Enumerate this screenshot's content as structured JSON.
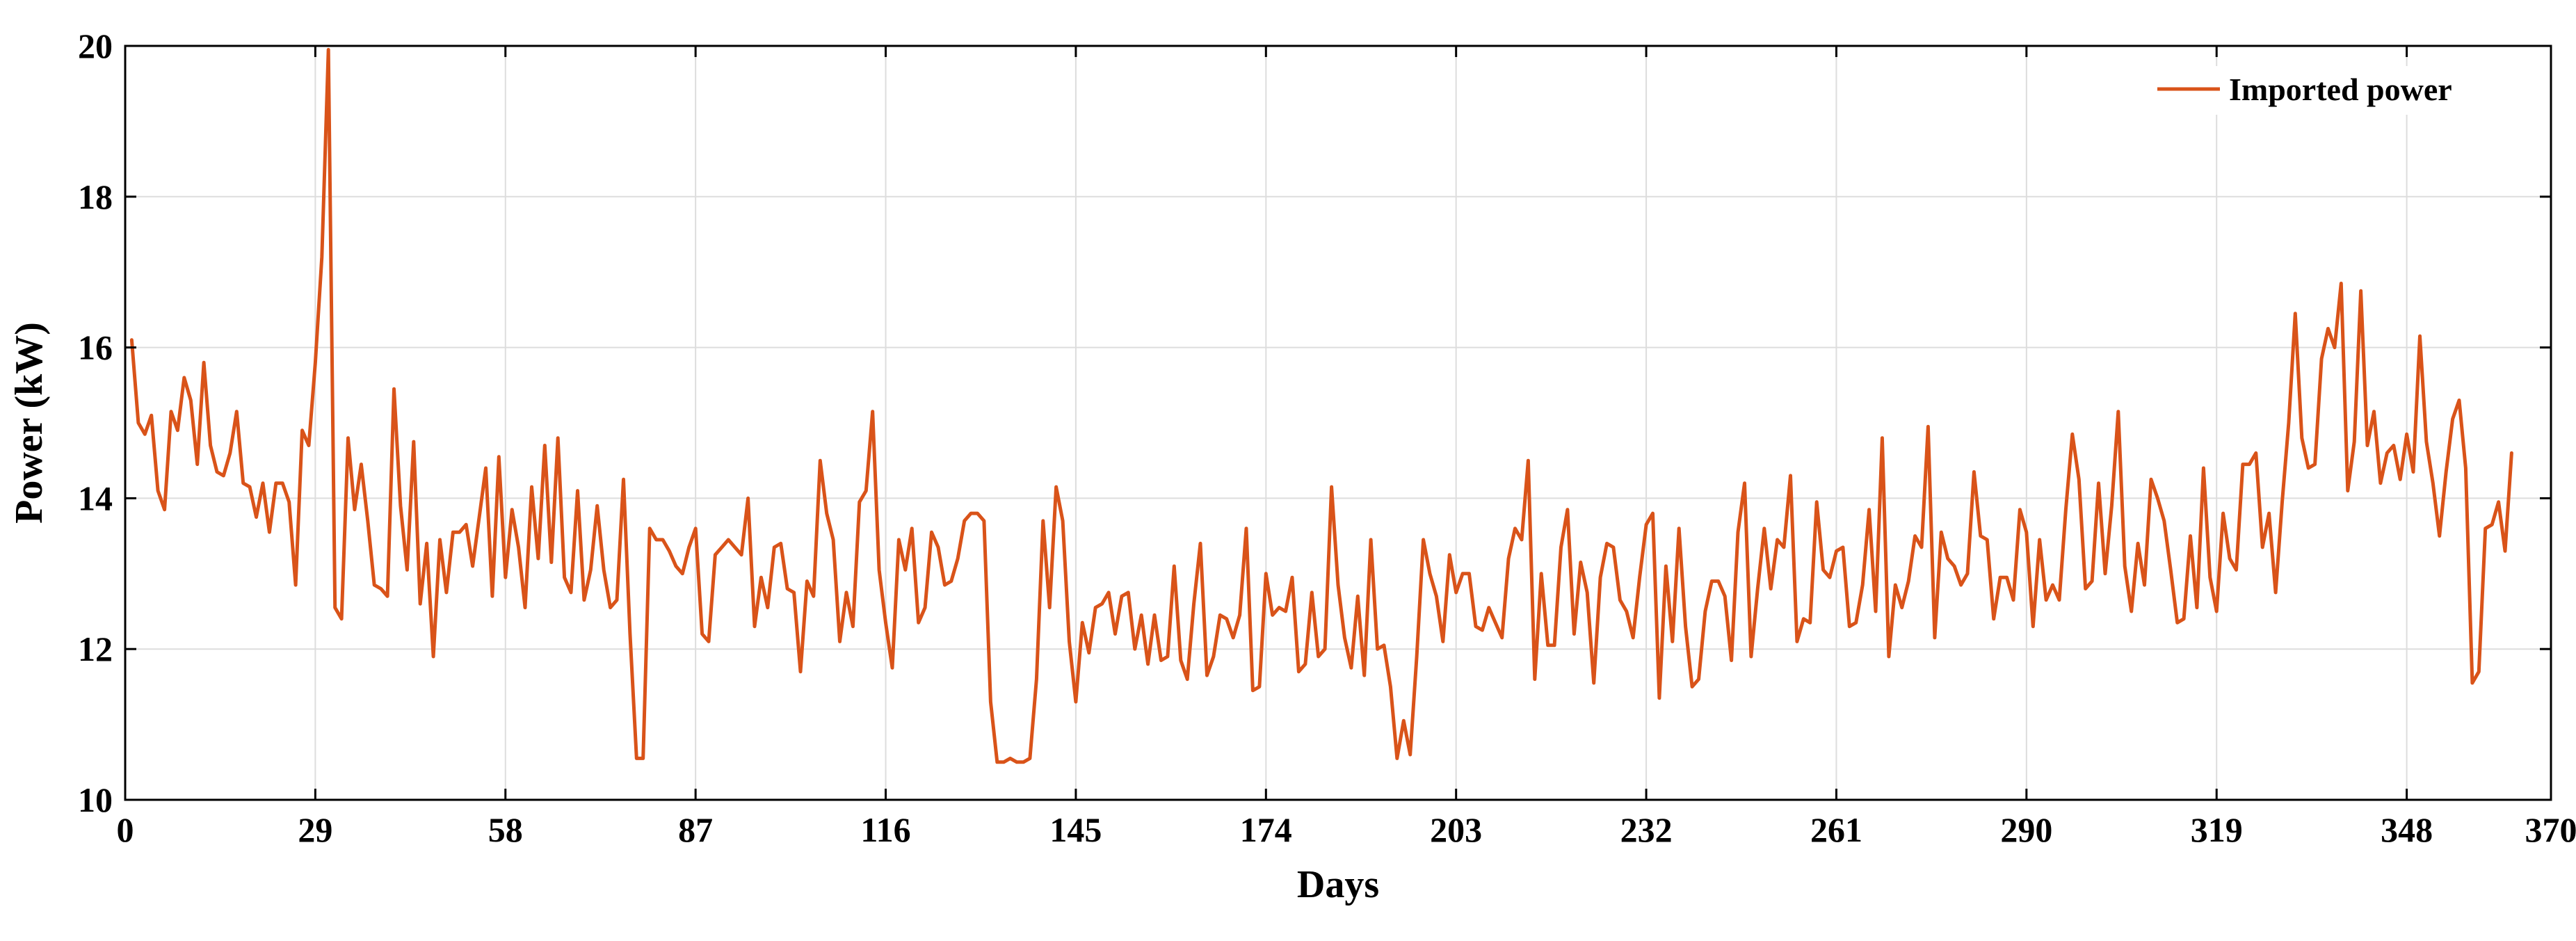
{
  "chart_data": {
    "type": "line",
    "xlabel": "Days",
    "ylabel": "Power (kW)",
    "xlim": [
      0,
      370
    ],
    "ylim": [
      10,
      20
    ],
    "xticks": [
      0,
      29,
      58,
      87,
      116,
      145,
      174,
      203,
      232,
      261,
      290,
      319,
      348,
      370
    ],
    "yticks": [
      10,
      12,
      14,
      16,
      18,
      20
    ],
    "grid": true,
    "legend_position": "top-right",
    "colors": {
      "series": "#D95319",
      "axis": "#000000",
      "grid": "#DDDDDD"
    },
    "series": [
      {
        "name": "Imported power",
        "values": [
          16.1,
          15.0,
          14.85,
          15.1,
          14.1,
          13.85,
          15.15,
          14.9,
          15.6,
          15.3,
          14.45,
          15.8,
          14.7,
          14.35,
          14.3,
          14.6,
          15.15,
          14.2,
          14.15,
          13.75,
          14.2,
          13.55,
          14.2,
          14.2,
          13.95,
          12.85,
          14.9,
          14.7,
          15.8,
          17.2,
          19.95,
          12.55,
          12.4,
          14.8,
          13.85,
          14.45,
          13.7,
          12.85,
          12.8,
          12.7,
          15.45,
          13.9,
          13.05,
          14.75,
          12.6,
          13.4,
          11.9,
          13.45,
          12.75,
          13.55,
          13.55,
          13.65,
          13.1,
          13.75,
          14.4,
          12.7,
          14.55,
          12.95,
          13.85,
          13.35,
          12.55,
          14.15,
          13.2,
          14.7,
          13.15,
          14.8,
          12.95,
          12.75,
          14.1,
          12.65,
          13.05,
          13.9,
          13.05,
          12.55,
          12.65,
          14.25,
          12.2,
          10.55,
          10.55,
          13.6,
          13.45,
          13.45,
          13.3,
          13.1,
          13.0,
          13.35,
          13.6,
          12.2,
          12.1,
          13.25,
          13.35,
          13.45,
          13.35,
          13.25,
          14.0,
          12.3,
          12.95,
          12.55,
          13.35,
          13.4,
          12.8,
          12.75,
          11.7,
          12.9,
          12.7,
          14.5,
          13.8,
          13.45,
          12.1,
          12.75,
          12.3,
          13.95,
          14.1,
          15.15,
          13.05,
          12.35,
          11.75,
          13.45,
          13.05,
          13.6,
          12.35,
          12.55,
          13.55,
          13.35,
          12.85,
          12.9,
          13.2,
          13.7,
          13.8,
          13.8,
          13.7,
          11.3,
          10.5,
          10.5,
          10.55,
          10.5,
          10.5,
          10.55,
          11.6,
          13.7,
          12.55,
          14.15,
          13.7,
          12.1,
          11.3,
          12.35,
          11.95,
          12.55,
          12.6,
          12.75,
          12.2,
          12.7,
          12.75,
          12.0,
          12.45,
          11.8,
          12.45,
          11.85,
          11.9,
          13.1,
          11.85,
          11.6,
          12.6,
          13.4,
          11.65,
          11.9,
          12.45,
          12.4,
          12.15,
          12.45,
          13.6,
          11.45,
          11.5,
          13.0,
          12.45,
          12.55,
          12.5,
          12.95,
          11.7,
          11.8,
          12.75,
          11.9,
          12.0,
          14.15,
          12.85,
          12.15,
          11.75,
          12.7,
          11.65,
          13.45,
          12.0,
          12.05,
          11.5,
          10.55,
          11.05,
          10.6,
          11.9,
          13.45,
          13.0,
          12.7,
          12.1,
          13.25,
          12.75,
          13.0,
          13.0,
          12.3,
          12.25,
          12.55,
          12.35,
          12.15,
          13.2,
          13.6,
          13.45,
          14.5,
          11.6,
          13.0,
          12.05,
          12.05,
          13.35,
          13.85,
          12.2,
          13.15,
          12.75,
          11.55,
          12.95,
          13.4,
          13.35,
          12.65,
          12.5,
          12.15,
          12.95,
          13.65,
          13.8,
          11.35,
          13.1,
          12.1,
          13.6,
          12.3,
          11.5,
          11.6,
          12.5,
          12.9,
          12.9,
          12.7,
          11.85,
          13.55,
          14.2,
          11.9,
          12.8,
          13.6,
          12.8,
          13.45,
          13.35,
          14.3,
          12.1,
          12.4,
          12.35,
          13.95,
          13.05,
          12.95,
          13.3,
          13.35,
          12.3,
          12.35,
          12.85,
          13.85,
          12.5,
          14.8,
          11.9,
          12.85,
          12.55,
          12.9,
          13.5,
          13.35,
          14.95,
          12.15,
          13.55,
          13.2,
          13.1,
          12.85,
          13.0,
          14.35,
          13.5,
          13.45,
          12.4,
          12.95,
          12.95,
          12.65,
          13.85,
          13.55,
          12.3,
          13.45,
          12.65,
          12.85,
          12.65,
          13.85,
          14.85,
          14.25,
          12.8,
          12.9,
          14.2,
          13.0,
          13.9,
          15.15,
          13.1,
          12.5,
          13.4,
          12.85,
          14.25,
          14.0,
          13.7,
          13.05,
          12.35,
          12.4,
          13.5,
          12.55,
          14.4,
          12.95,
          12.5,
          13.8,
          13.2,
          13.05,
          14.45,
          14.45,
          14.6,
          13.35,
          13.8,
          12.75,
          13.95,
          15.0,
          16.45,
          14.8,
          14.4,
          14.45,
          15.85,
          16.25,
          16.0,
          16.85,
          14.1,
          14.75,
          16.75,
          14.7,
          15.15,
          14.2,
          14.6,
          14.7,
          14.25,
          14.85,
          14.35,
          16.15,
          14.75,
          14.2,
          13.5,
          14.35,
          15.05,
          15.3,
          14.4,
          11.55,
          11.7,
          13.6,
          13.65,
          13.95,
          13.3,
          14.6
        ]
      }
    ]
  }
}
